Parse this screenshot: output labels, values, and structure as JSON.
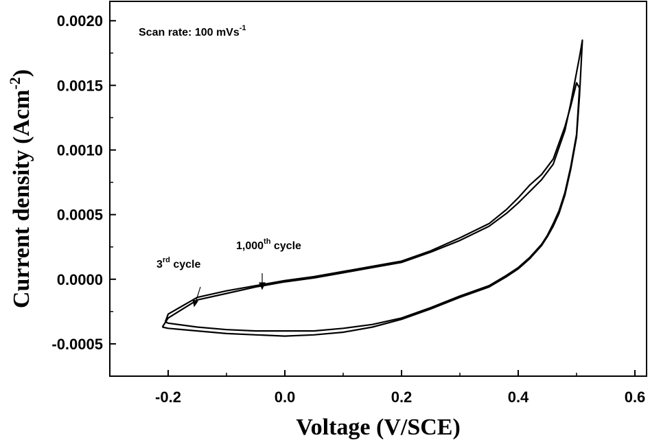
{
  "chart_data": {
    "type": "line",
    "xlabel": "Voltage (V/SCE)",
    "ylabel": "Current density (Acm",
    "ylabel_sup": "-2",
    "ylabel_close": ")",
    "xlim": [
      -0.3,
      0.62
    ],
    "ylim": [
      -0.00075,
      0.00215
    ],
    "xticks": [
      -0.2,
      0.0,
      0.2,
      0.4,
      0.6
    ],
    "xtick_labels": [
      "-0.2",
      "0.0",
      "0.2",
      "0.4",
      "0.6"
    ],
    "yticks": [
      -0.0005,
      0.0,
      0.0005,
      0.001,
      0.0015,
      0.002
    ],
    "ytick_labels": [
      "-0.0005",
      "0.0000",
      "0.0005",
      "0.0010",
      "0.0015",
      "0.0020"
    ],
    "grid": false,
    "annotations": {
      "scan_rate": {
        "text": "Scan rate: 100 mVs",
        "sup": "-1"
      },
      "third_cycle": {
        "pre": "3",
        "sup": "rd",
        "post": " cycle"
      },
      "thousandth_cycle": {
        "pre": "1,000",
        "sup": "th",
        "post": " cycle"
      }
    },
    "series": [
      {
        "x": [
          -0.21,
          -0.2,
          -0.15,
          -0.1,
          -0.05,
          0.0,
          0.05,
          0.1,
          0.15,
          0.2,
          0.25,
          0.3,
          0.35,
          0.38,
          0.4,
          0.42,
          0.44,
          0.46,
          0.48,
          0.49,
          0.5,
          0.505,
          0.51,
          0.505,
          0.5,
          0.49,
          0.48,
          0.47,
          0.46,
          0.45,
          0.44,
          0.42,
          0.4,
          0.38,
          0.35,
          0.3,
          0.25,
          0.2,
          0.15,
          0.1,
          0.05,
          0.0,
          -0.05,
          -0.1,
          -0.15,
          -0.2,
          -0.21
        ],
        "values": [
          -0.00037,
          -0.0003,
          -0.00016,
          -0.00011,
          -6e-05,
          -2e-05,
          1e-05,
          5e-05,
          9e-05,
          0.00013,
          0.00021,
          0.0003,
          0.00041,
          0.00051,
          0.00059,
          0.00068,
          0.00077,
          0.00089,
          0.00115,
          0.00136,
          0.0016,
          0.00172,
          0.00185,
          0.00142,
          0.0011,
          0.00085,
          0.00065,
          0.00051,
          0.00041,
          0.00033,
          0.00026,
          0.00016,
          8e-05,
          2e-05,
          -6e-05,
          -0.00014,
          -0.00023,
          -0.00031,
          -0.00037,
          -0.00041,
          -0.00043,
          -0.00044,
          -0.00043,
          -0.00042,
          -0.0004,
          -0.00038,
          -0.00037
        ]
      },
      {
        "x": [
          -0.205,
          -0.2,
          -0.15,
          -0.1,
          -0.05,
          0.0,
          0.05,
          0.1,
          0.15,
          0.2,
          0.25,
          0.3,
          0.35,
          0.38,
          0.4,
          0.42,
          0.44,
          0.46,
          0.48,
          0.49,
          0.5,
          0.505,
          0.5,
          0.49,
          0.48,
          0.47,
          0.46,
          0.45,
          0.44,
          0.42,
          0.4,
          0.38,
          0.35,
          0.3,
          0.25,
          0.2,
          0.15,
          0.1,
          0.05,
          0.0,
          -0.05,
          -0.1,
          -0.15,
          -0.2,
          -0.205
        ],
        "values": [
          -0.00033,
          -0.00027,
          -0.00014,
          -9e-05,
          -5e-05,
          -1e-05,
          2e-05,
          6e-05,
          0.0001,
          0.00014,
          0.00022,
          0.00032,
          0.00043,
          0.00054,
          0.00063,
          0.00073,
          0.00081,
          0.00093,
          0.00118,
          0.00134,
          0.00152,
          0.00148,
          0.00112,
          0.00087,
          0.00067,
          0.00053,
          0.00043,
          0.00034,
          0.00027,
          0.00017,
          9e-05,
          3e-05,
          -5e-05,
          -0.00013,
          -0.00022,
          -0.0003,
          -0.00035,
          -0.00038,
          -0.0004,
          -0.0004,
          -0.0004,
          -0.00039,
          -0.00037,
          -0.00034,
          -0.00033
        ]
      }
    ]
  }
}
